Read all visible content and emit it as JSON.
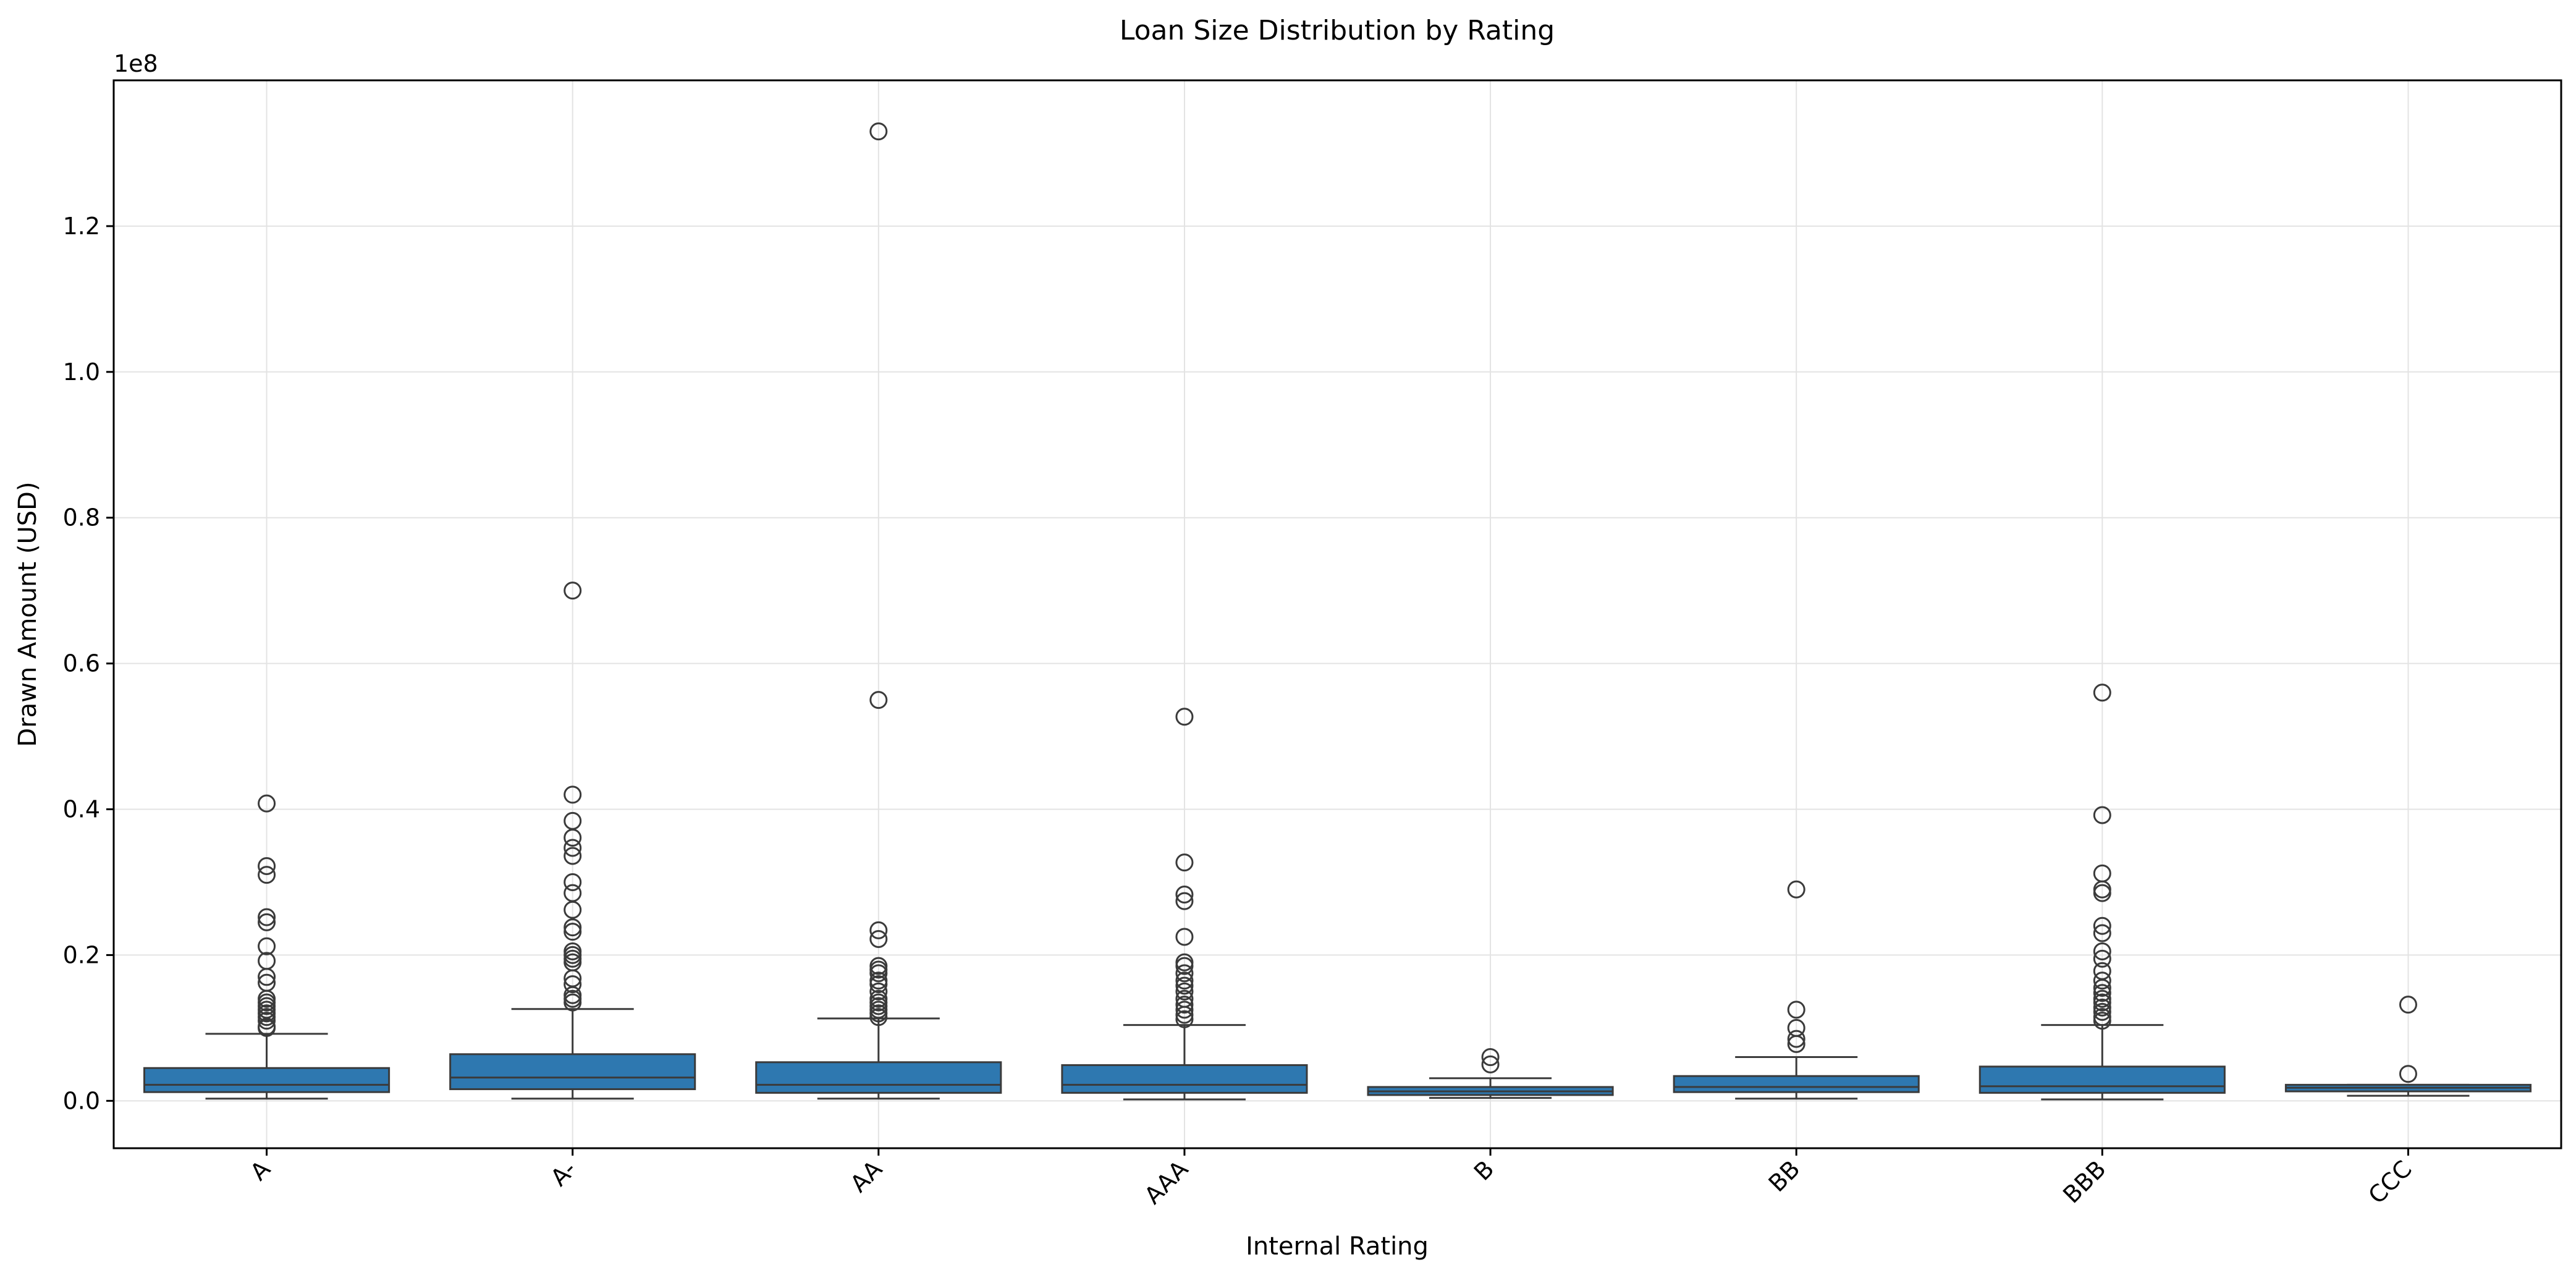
{
  "chart_data": {
    "type": "box",
    "title": "Loan Size Distribution by Rating",
    "xlabel": "Internal Rating",
    "ylabel": "Drawn Amount (USD)",
    "y_offset_label": "1e8",
    "y_scale_factor": 100000000,
    "ylim": [
      -0.065,
      1.4
    ],
    "y_ticks": [
      0.0,
      0.2,
      0.4,
      0.6,
      0.8,
      1.0,
      1.2
    ],
    "y_tick_labels": [
      "0.0",
      "0.2",
      "0.4",
      "0.6",
      "0.8",
      "1.0",
      "1.2"
    ],
    "grid": true,
    "box_color": "#2e78b0",
    "categories": [
      "A",
      "A-",
      "AA",
      "AAA",
      "B",
      "BB",
      "BBB",
      "CCC"
    ],
    "boxes": [
      {
        "category": "A",
        "whisker_low": 0.003,
        "q1": 0.012,
        "median": 0.022,
        "q3": 0.045,
        "whisker_high": 0.092,
        "outliers": [
          0.408,
          0.322,
          0.31,
          0.252,
          0.245,
          0.212,
          0.192,
          0.17,
          0.162,
          0.14,
          0.135,
          0.13,
          0.125,
          0.12,
          0.115,
          0.11,
          0.102,
          0.1
        ]
      },
      {
        "category": "A-",
        "whisker_low": 0.003,
        "q1": 0.016,
        "median": 0.032,
        "q3": 0.064,
        "whisker_high": 0.126,
        "outliers": [
          0.7,
          0.42,
          0.384,
          0.361,
          0.347,
          0.336,
          0.3,
          0.285,
          0.262,
          0.238,
          0.232,
          0.205,
          0.2,
          0.195,
          0.19,
          0.168,
          0.16,
          0.145,
          0.14,
          0.135
        ]
      },
      {
        "category": "AA",
        "whisker_low": 0.003,
        "q1": 0.011,
        "median": 0.022,
        "q3": 0.053,
        "whisker_high": 0.113,
        "outliers": [
          1.33,
          0.55,
          0.234,
          0.222,
          0.185,
          0.18,
          0.175,
          0.165,
          0.16,
          0.15,
          0.14,
          0.135,
          0.13,
          0.125,
          0.12,
          0.115
        ]
      },
      {
        "category": "AAA",
        "whisker_low": 0.002,
        "q1": 0.011,
        "median": 0.022,
        "q3": 0.049,
        "whisker_high": 0.104,
        "outliers": [
          0.527,
          0.327,
          0.283,
          0.274,
          0.225,
          0.19,
          0.185,
          0.175,
          0.165,
          0.158,
          0.15,
          0.14,
          0.132,
          0.125,
          0.118,
          0.112
        ]
      },
      {
        "category": "B",
        "whisker_low": 0.004,
        "q1": 0.008,
        "median": 0.013,
        "q3": 0.019,
        "whisker_high": 0.031,
        "outliers": [
          0.06,
          0.05
        ]
      },
      {
        "category": "BB",
        "whisker_low": 0.003,
        "q1": 0.012,
        "median": 0.019,
        "q3": 0.034,
        "whisker_high": 0.06,
        "outliers": [
          0.29,
          0.125,
          0.1,
          0.085,
          0.078
        ]
      },
      {
        "category": "BBB",
        "whisker_low": 0.002,
        "q1": 0.011,
        "median": 0.02,
        "q3": 0.047,
        "whisker_high": 0.104,
        "outliers": [
          0.56,
          0.392,
          0.312,
          0.29,
          0.285,
          0.24,
          0.23,
          0.205,
          0.195,
          0.178,
          0.165,
          0.155,
          0.148,
          0.14,
          0.135,
          0.128,
          0.122,
          0.115,
          0.11
        ]
      },
      {
        "category": "CCC",
        "whisker_low": 0.007,
        "q1": 0.013,
        "median": 0.018,
        "q3": 0.022,
        "whisker_high": 0.022,
        "outliers": [
          0.132,
          0.037
        ]
      }
    ]
  }
}
